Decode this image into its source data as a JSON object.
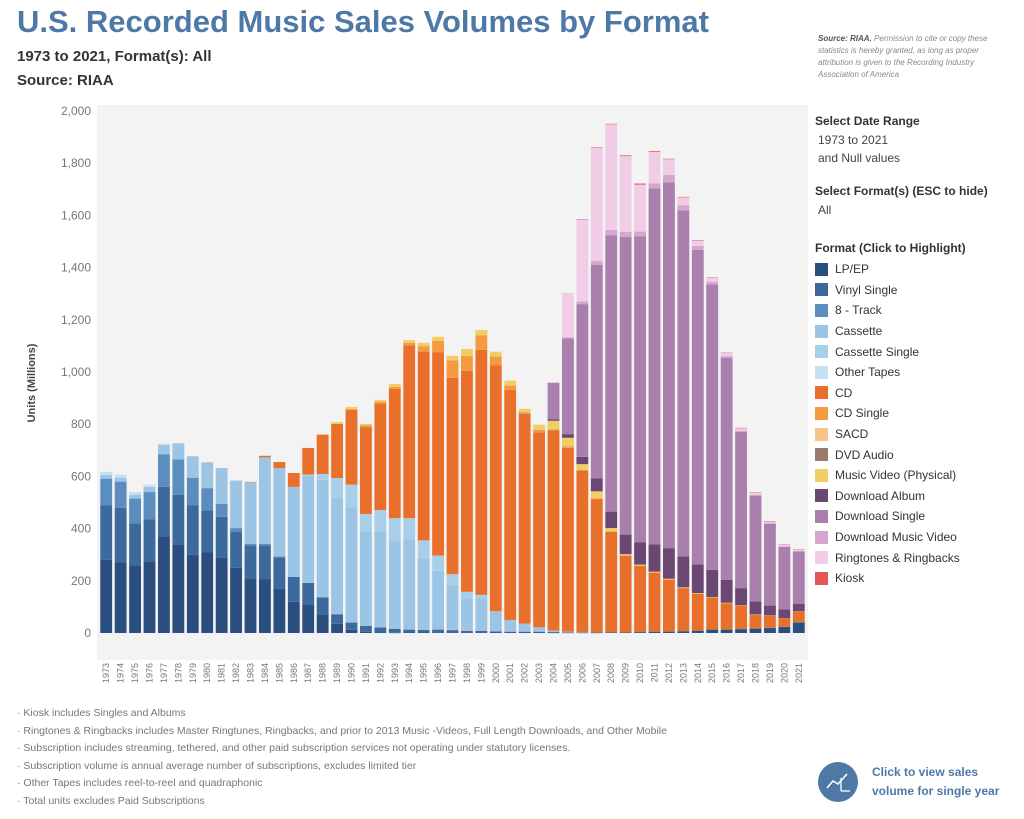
{
  "header": {
    "title": "U.S. Recorded Music Sales Volumes by Format",
    "subtitle": "1973 to 2021, Format(s): All",
    "source": "Source: RIAA",
    "note_source": "Source: RIAA.",
    "note_text": "Permission to cite or copy these statistics is hereby granted, as long as proper attribution is given to the Recording Industry Association of America"
  },
  "filters": {
    "date_range_label": "Select Date Range",
    "date_range_value": "1973 to 2021",
    "date_range_null": "and Null values",
    "format_label": "Select Format(s) (ESC to hide)",
    "format_value": "All"
  },
  "legend": {
    "title": "Format (Click to Highlight)"
  },
  "footnotes": [
    "· Kiosk includes Singles and Albums",
    "· Ringtones & Ringbacks includes Master Ringtunes, Ringbacks, and prior to 2013 Music -Videos, Full Length Downloads, and Other Mobile",
    "· Subscription includes streaming, tethered, and other paid subscription services not operating under statutory licenses.",
    "· Subscription volume is annual average number of subscriptions, excludes limited tier",
    "· Other Tapes includes reel-to-reel and quadraphonic",
    "· Total units excludes Paid Subscriptions"
  ],
  "single_year_button": {
    "line1": "Click to view sales",
    "line2": "volume for single year",
    "icon": "chart-circle-icon"
  },
  "chart_data": {
    "type": "bar",
    "stacked": true,
    "ylabel": "Units (Millions)",
    "xlabel": "",
    "ylim": [
      0,
      2000
    ],
    "yticks": [
      "0",
      "200",
      "400",
      "600",
      "800",
      "1,000",
      "1,200",
      "1,400",
      "1,600",
      "1,800",
      "2,000"
    ],
    "grid": false,
    "legend_position": "right",
    "categories": [
      "1973",
      "1974",
      "1975",
      "1976",
      "1977",
      "1978",
      "1979",
      "1980",
      "1981",
      "1982",
      "1983",
      "1984",
      "1985",
      "1986",
      "1987",
      "1988",
      "1989",
      "1990",
      "1991",
      "1992",
      "1993",
      "1994",
      "1995",
      "1996",
      "1997",
      "1998",
      "1999",
      "2000",
      "2001",
      "2002",
      "2003",
      "2004",
      "2005",
      "2006",
      "2007",
      "2008",
      "2009",
      "2010",
      "2011",
      "2012",
      "2013",
      "2014",
      "2015",
      "2016",
      "2017",
      "2018",
      "2019",
      "2020",
      "2021"
    ],
    "series": [
      {
        "name": "LP/EP",
        "color": "#2a4e80",
        "values": [
          280,
          270,
          260,
          275,
          370,
          340,
          300,
          310,
          290,
          250,
          210,
          205,
          170,
          120,
          110,
          72,
          35,
          12,
          5,
          2,
          1,
          2,
          2,
          3,
          3,
          3,
          3,
          2,
          2,
          2,
          2,
          1,
          1,
          1,
          1,
          2,
          2,
          3,
          4,
          5,
          6,
          8,
          12,
          13,
          14,
          16,
          19,
          23,
          40
        ]
      },
      {
        "name": "Vinyl Single",
        "color": "#3c6a9d",
        "values": [
          210,
          210,
          160,
          160,
          190,
          190,
          190,
          160,
          155,
          137,
          125,
          130,
          120,
          95,
          82,
          65,
          37,
          28,
          22,
          19,
          15,
          11,
          10,
          10,
          8,
          5,
          5,
          4,
          3,
          3,
          3,
          3,
          2,
          2,
          1,
          1,
          1,
          1,
          1,
          1,
          1,
          1,
          1,
          1,
          1,
          1,
          1,
          1,
          1
        ]
      },
      {
        "name": "8 - Track",
        "color": "#5b8dbf",
        "values": [
          100,
          100,
          95,
          105,
          125,
          135,
          105,
          85,
          50,
          15,
          6,
          6,
          3,
          0,
          0,
          0,
          0,
          0,
          0,
          0,
          0,
          0,
          0,
          0,
          0,
          0,
          0,
          0,
          0,
          0,
          0,
          0,
          0,
          0,
          0,
          0,
          0,
          0,
          0,
          0,
          0,
          0,
          0,
          0,
          0,
          0,
          0,
          0,
          0
        ]
      },
      {
        "name": "Cassette",
        "color": "#9cc4e4",
        "values": [
          15,
          15,
          15,
          20,
          36,
          61,
          82,
          99,
          137,
          182,
          237,
          332,
          339,
          345,
          410,
          450,
          446,
          442,
          360,
          366,
          339,
          345,
          273,
          225,
          172,
          124,
          124,
          76,
          45,
          31,
          17,
          5,
          2,
          1,
          0,
          0,
          0,
          0,
          0,
          0,
          0,
          0,
          0,
          0,
          0,
          0,
          0,
          0,
          0
        ]
      },
      {
        "name": "Cassette Single",
        "color": "#a8cfe9",
        "values": [
          0,
          0,
          0,
          0,
          0,
          0,
          0,
          0,
          0,
          0,
          0,
          0,
          0,
          0,
          5,
          22,
          76,
          87,
          69,
          84,
          85,
          82,
          70,
          59,
          42,
          26,
          14,
          1,
          0,
          0,
          0,
          0,
          0,
          0,
          0,
          0,
          0,
          0,
          0,
          0,
          0,
          0,
          0,
          0,
          0,
          0,
          0,
          0,
          0
        ]
      },
      {
        "name": "Other Tapes",
        "color": "#c5e0f3",
        "values": [
          12,
          12,
          10,
          8,
          5,
          2,
          1,
          1,
          0,
          0,
          0,
          0,
          0,
          0,
          0,
          0,
          0,
          0,
          0,
          0,
          0,
          0,
          0,
          0,
          0,
          0,
          0,
          0,
          0,
          0,
          0,
          0,
          0,
          0,
          0,
          0,
          0,
          0,
          0,
          0,
          0,
          0,
          0,
          0,
          0,
          0,
          0,
          0,
          0
        ]
      },
      {
        "name": "CD",
        "color": "#e8702a",
        "values": [
          0,
          0,
          0,
          0,
          0,
          0,
          0,
          0,
          0,
          0,
          1,
          6,
          23,
          53,
          102,
          150,
          207,
          287,
          333,
          408,
          495,
          662,
          723,
          779,
          753,
          847,
          939,
          943,
          882,
          803,
          746,
          767,
          705,
          619,
          511,
          385,
          293,
          253,
          226,
          198,
          165,
          141,
          123,
          100,
          89,
          52,
          47,
          32,
          41
        ]
      },
      {
        "name": "CD Single",
        "color": "#f39b3e",
        "values": [
          0,
          0,
          0,
          0,
          0,
          0,
          0,
          0,
          0,
          0,
          0,
          0,
          0,
          0,
          0,
          2,
          0,
          1,
          6,
          7,
          8,
          9,
          21,
          43,
          66,
          56,
          56,
          34,
          17,
          5,
          8,
          3,
          3,
          1,
          3,
          1,
          1,
          1,
          1,
          1,
          1,
          1,
          1,
          1,
          1,
          1,
          1,
          1,
          1
        ]
      },
      {
        "name": "SACD",
        "color": "#f7c48b",
        "values": [
          0,
          0,
          0,
          0,
          0,
          0,
          0,
          0,
          0,
          0,
          0,
          0,
          0,
          0,
          0,
          0,
          0,
          0,
          0,
          0,
          0,
          0,
          0,
          0,
          0,
          0,
          0,
          0,
          0,
          0,
          1,
          1,
          1,
          0,
          0,
          0,
          0,
          0,
          0,
          0,
          0,
          0,
          0,
          0,
          0,
          0,
          0,
          0,
          0
        ]
      },
      {
        "name": "DVD Audio",
        "color": "#9c7b6e",
        "values": [
          0,
          0,
          0,
          0,
          0,
          0,
          0,
          0,
          0,
          0,
          0,
          0,
          0,
          0,
          0,
          0,
          0,
          0,
          0,
          0,
          0,
          0,
          0,
          0,
          0,
          0,
          0,
          0,
          0,
          1,
          1,
          1,
          1,
          0,
          0,
          0,
          0,
          0,
          0,
          0,
          0,
          0,
          0,
          0,
          0,
          0,
          0,
          0,
          0
        ]
      },
      {
        "name": "Music Video (Physical)",
        "color": "#f1ce63",
        "values": [
          0,
          0,
          0,
          0,
          0,
          0,
          0,
          0,
          0,
          0,
          0,
          0,
          0,
          0,
          0,
          0,
          7,
          9,
          6,
          7,
          11,
          11,
          13,
          16,
          18,
          27,
          20,
          18,
          18,
          14,
          20,
          32,
          33,
          23,
          27,
          13,
          5,
          4,
          3,
          3,
          2,
          2,
          1,
          1,
          1,
          1,
          0,
          0,
          0
        ]
      },
      {
        "name": "Download Album",
        "color": "#6b4774",
        "values": [
          0,
          0,
          0,
          0,
          0,
          0,
          0,
          0,
          0,
          0,
          0,
          0,
          0,
          0,
          0,
          0,
          0,
          0,
          0,
          0,
          0,
          0,
          0,
          0,
          0,
          0,
          0,
          0,
          0,
          0,
          0,
          5,
          14,
          28,
          50,
          63,
          75,
          86,
          105,
          117,
          118,
          110,
          104,
          88,
          66,
          50,
          37,
          33,
          28
        ]
      },
      {
        "name": "Download Single",
        "color": "#a97fae",
        "values": [
          0,
          0,
          0,
          0,
          0,
          0,
          0,
          0,
          0,
          0,
          0,
          0,
          0,
          0,
          0,
          0,
          0,
          0,
          0,
          0,
          0,
          0,
          0,
          0,
          0,
          0,
          0,
          0,
          0,
          0,
          0,
          140,
          367,
          585,
          818,
          1059,
          1140,
          1172,
          1363,
          1401,
          1326,
          1205,
          1094,
          851,
          598,
          405,
          313,
          240,
          201
        ]
      },
      {
        "name": "Download Music Video",
        "color": "#d7a5cd",
        "values": [
          0,
          0,
          0,
          0,
          0,
          0,
          0,
          0,
          0,
          0,
          0,
          0,
          0,
          0,
          0,
          0,
          0,
          0,
          0,
          0,
          0,
          0,
          0,
          0,
          0,
          0,
          0,
          0,
          0,
          0,
          0,
          2,
          4,
          10,
          14,
          20,
          20,
          18,
          20,
          29,
          20,
          15,
          10,
          6,
          5,
          4,
          3,
          2,
          2
        ]
      },
      {
        "name": "Ringtones & Ringbacks",
        "color": "#f1cce6",
        "values": [
          0,
          0,
          0,
          0,
          0,
          0,
          0,
          0,
          0,
          0,
          0,
          0,
          0,
          0,
          0,
          0,
          0,
          0,
          0,
          0,
          0,
          0,
          0,
          0,
          0,
          0,
          0,
          0,
          0,
          0,
          0,
          0,
          170,
          315,
          434,
          405,
          290,
          180,
          120,
          60,
          30,
          20,
          15,
          12,
          10,
          8,
          7,
          6,
          5
        ]
      },
      {
        "name": "Kiosk",
        "color": "#e15759",
        "values": [
          0,
          0,
          0,
          0,
          0,
          0,
          0,
          0,
          0,
          0,
          0,
          0,
          0,
          0,
          0,
          0,
          0,
          0,
          0,
          0,
          0,
          0,
          0,
          0,
          0,
          0,
          0,
          0,
          0,
          0,
          0,
          0,
          0,
          1,
          2,
          2,
          3,
          4,
          3,
          2,
          2,
          2,
          1,
          1,
          1,
          1,
          1,
          1,
          1
        ]
      }
    ]
  }
}
